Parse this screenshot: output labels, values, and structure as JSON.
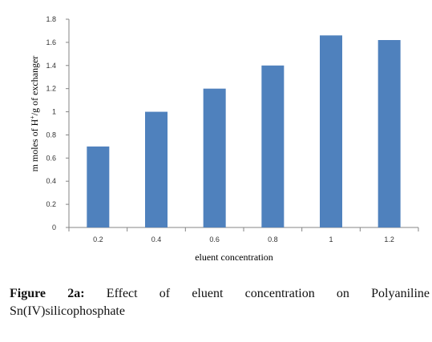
{
  "chart_data": {
    "type": "bar",
    "categories": [
      "0.2",
      "0.4",
      "0.6",
      "0.8",
      "1",
      "1.2"
    ],
    "values": [
      0.7,
      1.0,
      1.2,
      1.4,
      1.66,
      1.62
    ],
    "xlabel": "eluent concentration",
    "ylabel_main": "m moles of H",
    "ylabel_sup": "+",
    "ylabel_rest": "/g of exchanger",
    "ylim": [
      0,
      1.8
    ],
    "yticks": [
      "0",
      "0.2",
      "0.4",
      "0.6",
      "0.8",
      "1",
      "1.2",
      "1.4",
      "1.6",
      "1.8"
    ],
    "grid": false,
    "bar_color": "#4f81bd"
  },
  "caption": {
    "label": "Figure 2a:",
    "line1_text": "Effect of eluent concentration on Polyaniline",
    "line2_text": "Sn(IV)silicophosphate"
  }
}
